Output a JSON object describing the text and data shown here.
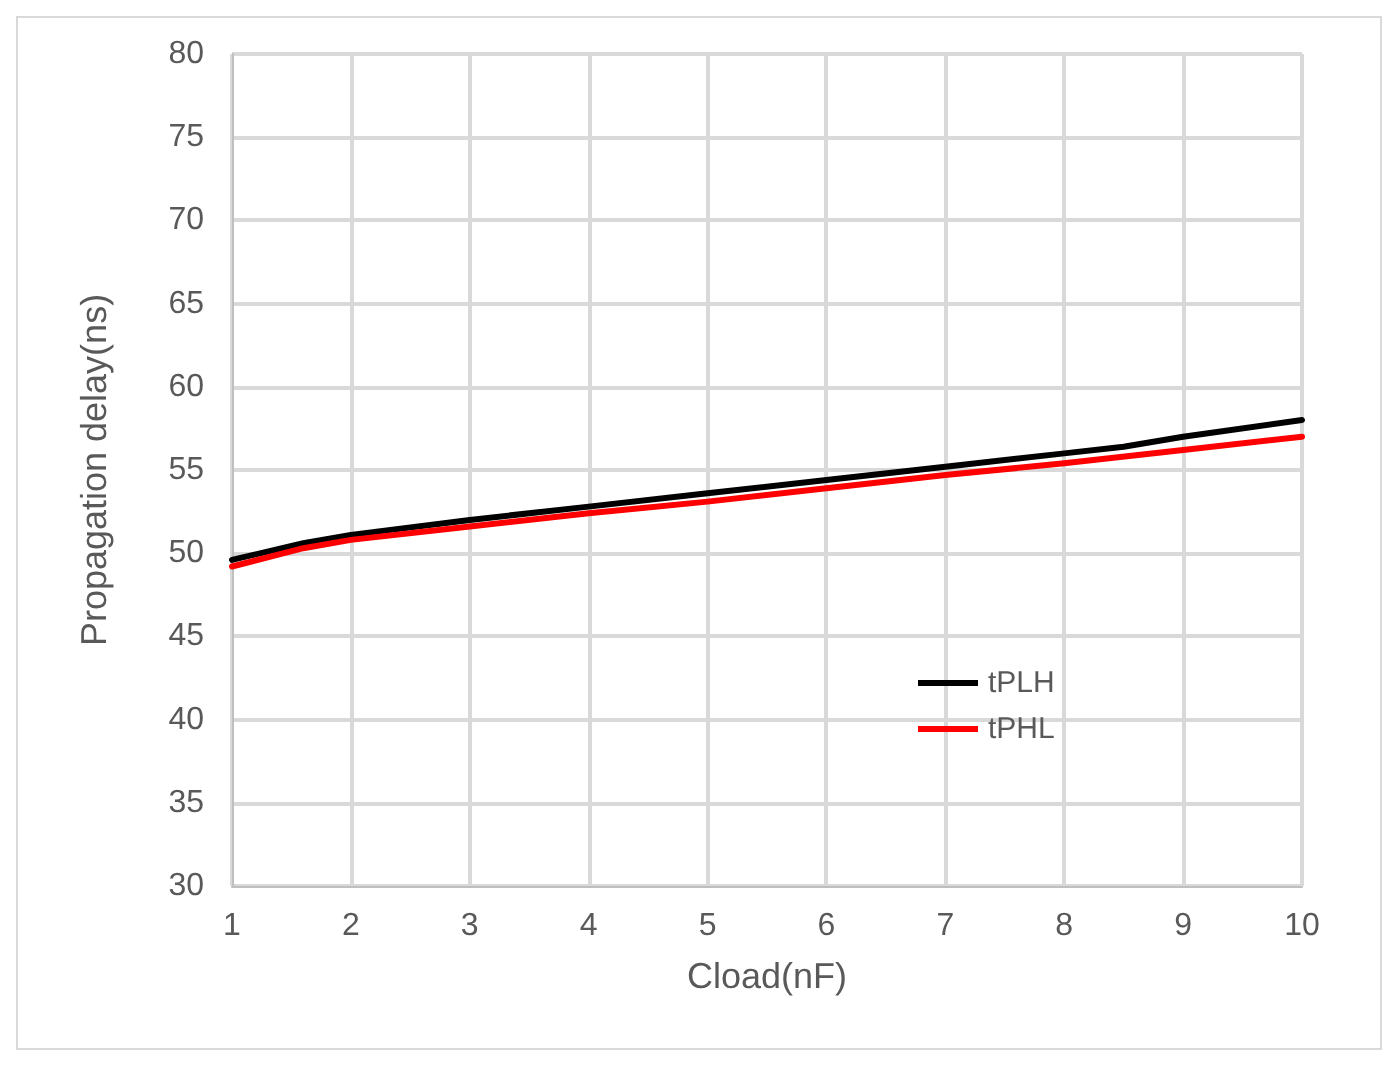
{
  "chart_data": {
    "type": "line",
    "xlabel": "Cload(nF)",
    "ylabel": "Propagation delay(ns)",
    "xlim": [
      1,
      10
    ],
    "xticks": [
      1,
      2,
      3,
      4,
      5,
      6,
      7,
      8,
      9,
      10
    ],
    "ylim": [
      30,
      80
    ],
    "yticks": [
      30,
      35,
      40,
      45,
      50,
      55,
      60,
      65,
      70,
      75,
      80
    ],
    "grid": true,
    "legend": "right",
    "marker": "none",
    "line_style": "solid",
    "series": [
      {
        "name": "tPLH",
        "color": "#000000",
        "x": [
          1,
          1.6,
          2,
          3,
          4,
          5,
          6,
          7,
          8,
          8.5,
          9,
          10
        ],
        "values": [
          49.6,
          50.6,
          51.1,
          52.0,
          52.8,
          53.6,
          54.4,
          55.2,
          56.0,
          56.4,
          57.0,
          58.0
        ]
      },
      {
        "name": "tPHL",
        "color": "#ff0000",
        "x": [
          1,
          1.6,
          2,
          3,
          4,
          5,
          6,
          7,
          8,
          9,
          10
        ],
        "values": [
          49.2,
          50.3,
          50.8,
          51.6,
          52.4,
          53.1,
          53.9,
          54.7,
          55.4,
          56.2,
          57.0
        ]
      }
    ]
  }
}
